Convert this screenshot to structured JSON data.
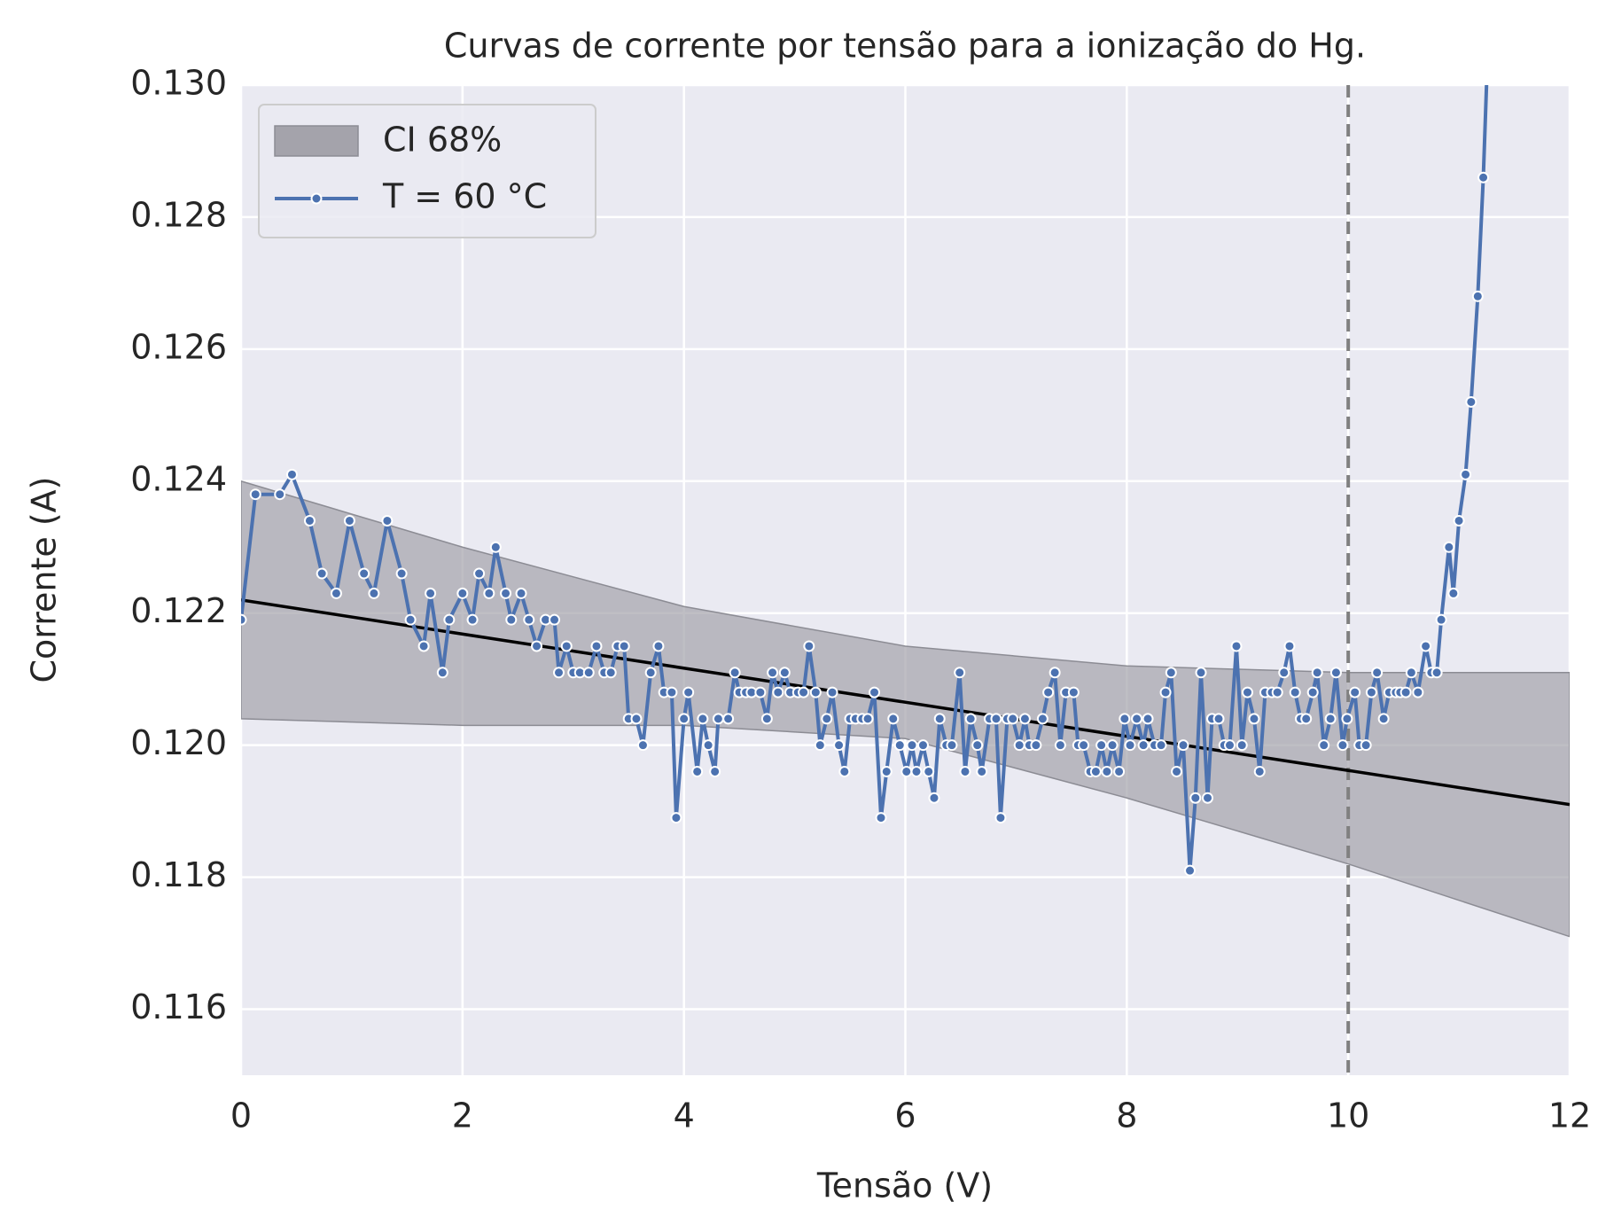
{
  "chart_data": {
    "type": "line",
    "title": "Curvas de corrente por tensão para a ionização do Hg.",
    "x_label": "Tensão (V)",
    "y_label": "Corrente (A)",
    "xlim": [
      0,
      12
    ],
    "xticks": [
      0,
      2,
      4,
      6,
      8,
      10,
      12
    ],
    "ylim": [
      0.115,
      0.13
    ],
    "yticks": [
      0.116,
      0.118,
      {
        "value": 0.12,
        "label": "0.120"
      },
      0.122,
      0.124,
      0.126,
      0.128,
      {
        "value": 0.13,
        "label": "0.130"
      }
    ],
    "grid": true,
    "legend": "upper left",
    "series": [
      {
        "name": "T = 60 °C",
        "color": "#4c72b0",
        "x": [
          0,
          0.13,
          0.35,
          0.46,
          0.62,
          0.73,
          0.86,
          0.98,
          1.11,
          1.2,
          1.32,
          1.45,
          1.53,
          1.65,
          1.71,
          1.82,
          1.88,
          2.0,
          2.09,
          2.15,
          2.24,
          2.3,
          2.39,
          2.44,
          2.53,
          2.6,
          2.67,
          2.75,
          2.83,
          2.87,
          2.94,
          3.0,
          3.06,
          3.14,
          3.21,
          3.28,
          3.34,
          3.4,
          3.46,
          3.5,
          3.57,
          3.63,
          3.7,
          3.77,
          3.82,
          3.89,
          3.93,
          4.0,
          4.04,
          4.12,
          4.17,
          4.22,
          4.28,
          4.31,
          4.4,
          4.46,
          4.5,
          4.56,
          4.61,
          4.69,
          4.75,
          4.8,
          4.85,
          4.91,
          4.96,
          5.03,
          5.08,
          5.13,
          5.19,
          5.23,
          5.29,
          5.34,
          5.4,
          5.45,
          5.5,
          5.55,
          5.61,
          5.66,
          5.72,
          5.78,
          5.83,
          5.89,
          5.95,
          6.01,
          6.06,
          6.1,
          6.16,
          6.21,
          6.26,
          6.31,
          6.37,
          6.42,
          6.49,
          6.54,
          6.59,
          6.65,
          6.69,
          6.76,
          6.82,
          6.86,
          6.92,
          6.97,
          7.03,
          7.08,
          7.12,
          7.18,
          7.24,
          7.29,
          7.35,
          7.4,
          7.45,
          7.52,
          7.56,
          7.61,
          7.67,
          7.72,
          7.77,
          7.82,
          7.87,
          7.93,
          7.98,
          8.03,
          8.09,
          8.15,
          8.19,
          8.25,
          8.31,
          8.35,
          8.4,
          8.45,
          8.51,
          8.57,
          8.62,
          8.67,
          8.73,
          8.77,
          8.83,
          8.88,
          8.93,
          8.99,
          9.04,
          9.09,
          9.15,
          9.2,
          9.25,
          9.31,
          9.36,
          9.42,
          9.47,
          9.52,
          9.57,
          9.62,
          9.68,
          9.72,
          9.78,
          9.84,
          9.89,
          9.95,
          9.99,
          10.06,
          10.1,
          10.16,
          10.21,
          10.26,
          10.32,
          10.37,
          10.43,
          10.47,
          10.52,
          10.57,
          10.63,
          10.7,
          10.75,
          10.8,
          10.84,
          10.91,
          10.95,
          11.0,
          11.06,
          11.11,
          11.17,
          11.22,
          11.27
        ],
        "values": [
          0.1219,
          0.1238,
          0.1238,
          0.1241,
          0.1234,
          0.1226,
          0.1223,
          0.1234,
          0.1226,
          0.1223,
          0.1234,
          0.1226,
          0.1219,
          0.1215,
          0.1223,
          0.1211,
          0.1219,
          0.1223,
          0.1219,
          0.1226,
          0.1223,
          0.123,
          0.1223,
          0.1219,
          0.1223,
          0.1219,
          0.1215,
          0.1219,
          0.1219,
          0.1211,
          0.1215,
          0.1211,
          0.1211,
          0.1211,
          0.1215,
          0.1211,
          0.1211,
          0.1215,
          0.1215,
          0.1204,
          0.1204,
          0.12,
          0.1211,
          0.1215,
          0.1208,
          0.1208,
          0.1189,
          0.1204,
          0.1208,
          0.1196,
          0.1204,
          0.12,
          0.1196,
          0.1204,
          0.1204,
          0.1211,
          0.1208,
          0.1208,
          0.1208,
          0.1208,
          0.1204,
          0.1211,
          0.1208,
          0.1211,
          0.1208,
          0.1208,
          0.1208,
          0.1215,
          0.1208,
          0.12,
          0.1204,
          0.1208,
          0.12,
          0.1196,
          0.1204,
          0.1204,
          0.1204,
          0.1204,
          0.1208,
          0.1189,
          0.1196,
          0.1204,
          0.12,
          0.1196,
          0.12,
          0.1196,
          0.12,
          0.1196,
          0.1192,
          0.1204,
          0.12,
          0.12,
          0.1211,
          0.1196,
          0.1204,
          0.12,
          0.1196,
          0.1204,
          0.1204,
          0.1189,
          0.1204,
          0.1204,
          0.12,
          0.1204,
          0.12,
          0.12,
          0.1204,
          0.1208,
          0.1211,
          0.12,
          0.1208,
          0.1208,
          0.12,
          0.12,
          0.1196,
          0.1196,
          0.12,
          0.1196,
          0.12,
          0.1196,
          0.1204,
          0.12,
          0.1204,
          0.12,
          0.1204,
          0.12,
          0.12,
          0.1208,
          0.1211,
          0.1196,
          0.12,
          0.1181,
          0.1192,
          0.1211,
          0.1192,
          0.1204,
          0.1204,
          0.12,
          0.12,
          0.1215,
          0.12,
          0.1208,
          0.1204,
          0.1196,
          0.1208,
          0.1208,
          0.1208,
          0.1211,
          0.1215,
          0.1208,
          0.1204,
          0.1204,
          0.1208,
          0.1211,
          0.12,
          0.1204,
          0.1211,
          0.12,
          0.1204,
          0.1208,
          0.12,
          0.12,
          0.1208,
          0.1211,
          0.1204,
          0.1208,
          0.1208,
          0.1208,
          0.1208,
          0.1211,
          0.1208,
          0.1215,
          0.1211,
          0.1211,
          0.1219,
          0.123,
          0.1223,
          0.1234,
          0.1241,
          0.1252,
          0.1268,
          0.1286,
          0.131
        ]
      }
    ],
    "fit": {
      "color": "#000000",
      "x": [
        0,
        12
      ],
      "values": [
        0.1222,
        0.1191
      ]
    },
    "ci": {
      "name": "CI 68%",
      "color": "#a4a3ab",
      "x": [
        0,
        2,
        4,
        6,
        8,
        10,
        12
      ],
      "lower": [
        0.1204,
        0.1203,
        0.1203,
        0.1201,
        0.1192,
        0.1182,
        0.1171
      ],
      "upper": [
        0.124,
        0.123,
        0.1221,
        0.1215,
        0.1212,
        0.1211,
        0.1211
      ]
    },
    "vline": {
      "x": 10,
      "color": "#808080"
    }
  }
}
